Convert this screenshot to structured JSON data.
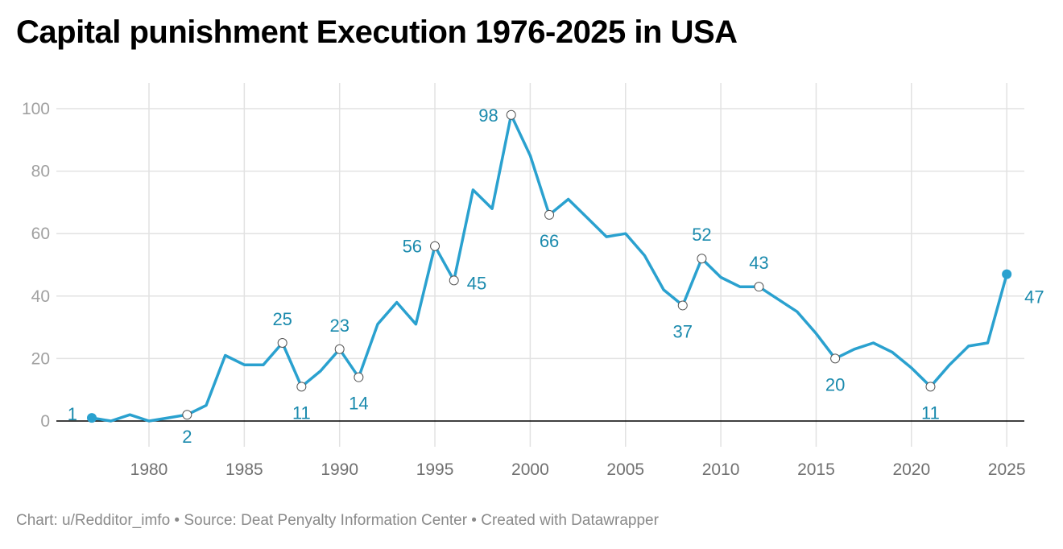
{
  "title": "Capital punishment Execution 1976-2025 in USA",
  "footer": "Chart: u/Redditor_imfo • Source: Deat Penyalty Information Center • Created with Datawrapper",
  "colors": {
    "line": "#2aa1cf",
    "label": "#1a8aad",
    "grid": "#e2e2e2",
    "baseline": "#000000"
  },
  "chart_data": {
    "type": "line",
    "title": "Capital punishment Execution 1976-2025 in USA",
    "xlabel": "",
    "ylabel": "",
    "xlim": [
      1974.5,
      1926.8
    ],
    "ylim": [
      -8,
      108
    ],
    "grid": true,
    "y_ticks": [
      0,
      20,
      40,
      60,
      80,
      100
    ],
    "x_ticks": [
      1980,
      1985,
      1990,
      1995,
      2000,
      2005,
      2010,
      2015,
      2020,
      2025
    ],
    "x": [
      1977,
      1978,
      1979,
      1980,
      1981,
      1982,
      1983,
      1984,
      1985,
      1986,
      1987,
      1988,
      1989,
      1990,
      1991,
      1992,
      1993,
      1994,
      1995,
      1996,
      1997,
      1998,
      1999,
      2000,
      2001,
      2002,
      2003,
      2004,
      2005,
      2006,
      2007,
      2008,
      2009,
      2010,
      2011,
      2012,
      2013,
      2014,
      2015,
      2016,
      2017,
      2018,
      2019,
      2020,
      2021,
      2022,
      2023,
      2024,
      2025
    ],
    "values": [
      1,
      0,
      2,
      0,
      1,
      2,
      5,
      21,
      18,
      18,
      25,
      11,
      16,
      23,
      14,
      31,
      38,
      31,
      56,
      45,
      74,
      68,
      98,
      85,
      66,
      71,
      65,
      59,
      60,
      53,
      42,
      37,
      52,
      46,
      43,
      43,
      39,
      35,
      28,
      20,
      23,
      25,
      22,
      17,
      11,
      18,
      24,
      25,
      47
    ],
    "annotations": [
      {
        "x": 1977,
        "y": 1,
        "text": "1",
        "dot": "filled"
      },
      {
        "x": 1982,
        "y": 2,
        "text": "2",
        "dot": "open"
      },
      {
        "x": 1987,
        "y": 25,
        "text": "25",
        "dot": "open"
      },
      {
        "x": 1988,
        "y": 11,
        "text": "11",
        "dot": "open"
      },
      {
        "x": 1990,
        "y": 23,
        "text": "23",
        "dot": "open"
      },
      {
        "x": 1991,
        "y": 14,
        "text": "14",
        "dot": "open"
      },
      {
        "x": 1995,
        "y": 56,
        "text": "56",
        "dot": "open"
      },
      {
        "x": 1996,
        "y": 45,
        "text": "45",
        "dot": "open"
      },
      {
        "x": 1999,
        "y": 98,
        "text": "98",
        "dot": "open"
      },
      {
        "x": 2001,
        "y": 66,
        "text": "66",
        "dot": "open"
      },
      {
        "x": 2008,
        "y": 37,
        "text": "37",
        "dot": "open"
      },
      {
        "x": 2009,
        "y": 52,
        "text": "52",
        "dot": "open"
      },
      {
        "x": 2012,
        "y": 43,
        "text": "43",
        "dot": "open"
      },
      {
        "x": 2016,
        "y": 20,
        "text": "20",
        "dot": "open"
      },
      {
        "x": 2021,
        "y": 11,
        "text": "11",
        "dot": "open"
      },
      {
        "x": 2025,
        "y": 47,
        "text": "47",
        "dot": "filled"
      }
    ]
  }
}
